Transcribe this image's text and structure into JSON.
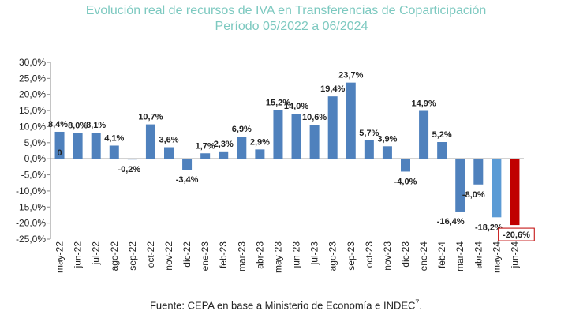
{
  "chart_data": {
    "type": "bar",
    "title": "Evolución real de recursos de IVA en Transferencias de Coparticipación",
    "subtitle": "Período 05/2022 a 06/2024",
    "categories": [
      "may-22",
      "jun-22",
      "jul-22",
      "ago-22",
      "sep-22",
      "oct-22",
      "nov-22",
      "dic-22",
      "ene-23",
      "feb-23",
      "mar-23",
      "abr-23",
      "may-23",
      "jun-23",
      "jul-23",
      "ago-23",
      "sep-23",
      "oct-23",
      "nov-23",
      "dic-23",
      "ene-24",
      "feb-24",
      "mar-24",
      "abr-24",
      "may-24",
      "jun-24"
    ],
    "values": [
      8.4,
      8.0,
      8.1,
      4.1,
      -0.2,
      10.7,
      3.6,
      -3.4,
      1.7,
      2.3,
      6.9,
      2.9,
      15.2,
      14.0,
      10.6,
      19.4,
      23.7,
      5.7,
      3.9,
      -4.0,
      14.9,
      5.2,
      -16.4,
      -8.0,
      -18.2,
      -20.6
    ],
    "labels": [
      "8,4%",
      "8,0%",
      "8,1%",
      "4,1%",
      "-0,2%",
      "10,7%",
      "3,6%",
      "-3,4%",
      "1,7%",
      "2,3%",
      "6,9%",
      "2,9%",
      "15,2%",
      "14,0%",
      "10,6%",
      "19,4%",
      "23,7%",
      "5,7%",
      "3,9%",
      "-4,0%",
      "14,9%",
      "5,2%",
      "-16,4%",
      "-8,0%",
      "-18,2%",
      "-20,6%"
    ],
    "first_bar_inner_label": "0",
    "ylim": [
      -25,
      30
    ],
    "ytick_labels": [
      "30,0%",
      "25,0%",
      "20,0%",
      "15,0%",
      "10,0%",
      "5,0%",
      "0,0%",
      "-5,0%",
      "-10,0%",
      "-15,0%",
      "-20,0%",
      "-25,0%"
    ],
    "grid": false,
    "colors": {
      "bar": "#4f81bd",
      "bar_light": "#5b9bd5",
      "highlight": "#c00000",
      "title": "#7dc9c0"
    }
  },
  "source": {
    "text": "Fuente: CEPA en base a Ministerio de Economía e INDEC",
    "superscript": "7",
    "suffix": "."
  }
}
